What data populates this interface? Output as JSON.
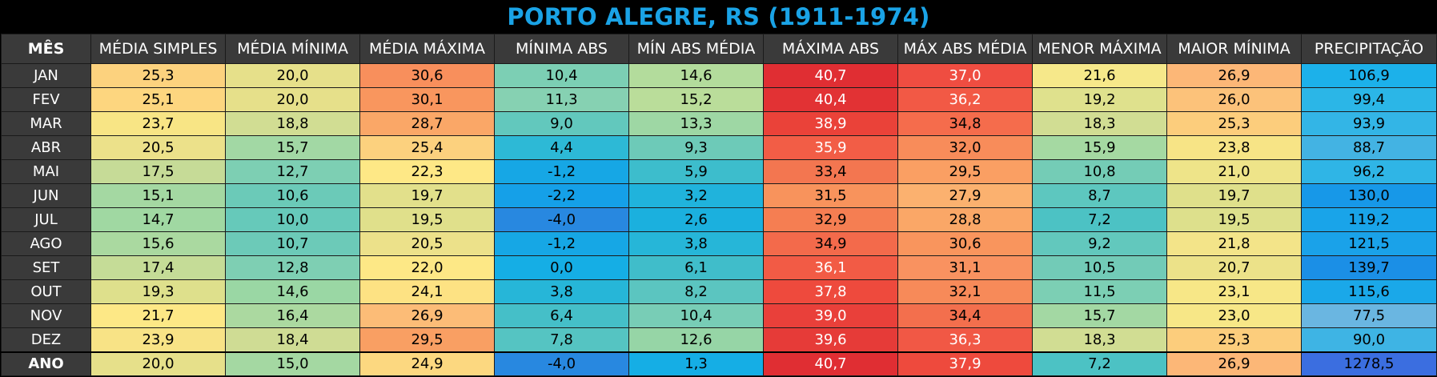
{
  "title": "PORTO ALEGRE, RS (1911-1974)",
  "headers": [
    "MÊS",
    "MÉDIA SIMPLES",
    "MÉDIA MÍNIMA",
    "MÉDIA MÁXIMA",
    "MÍNIMA ABS",
    "MÍN ABS MÉDIA",
    "MÁXIMA ABS",
    "MÁX ABS MÉDIA",
    "MENOR MÁXIMA",
    "MAIOR MÍNIMA",
    "PRECIPITAÇÃO"
  ],
  "rows": [
    {
      "month": "JAN",
      "cells": [
        {
          "v": "25,3",
          "c": "#fcd27e"
        },
        {
          "v": "20,0",
          "c": "#e6e08a"
        },
        {
          "v": "30,6",
          "c": "#f88f5c"
        },
        {
          "v": "10,4",
          "c": "#7ccfb4"
        },
        {
          "v": "14,6",
          "c": "#b3dc9c"
        },
        {
          "v": "40,7",
          "c": "#e02e33",
          "w": true
        },
        {
          "v": "37,0",
          "c": "#ef4d41",
          "w": true
        },
        {
          "v": "21,6",
          "c": "#f6e88a"
        },
        {
          "v": "26,9",
          "c": "#fcb777"
        },
        {
          "v": "106,9",
          "c": "#1cb1ea"
        }
      ]
    },
    {
      "month": "FEV",
      "cells": [
        {
          "v": "25,1",
          "c": "#fdd67f"
        },
        {
          "v": "20,0",
          "c": "#e6e08a"
        },
        {
          "v": "30,1",
          "c": "#f9965e"
        },
        {
          "v": "11,3",
          "c": "#86d1b2"
        },
        {
          "v": "15,2",
          "c": "#badd9a"
        },
        {
          "v": "40,4",
          "c": "#e23234",
          "w": true
        },
        {
          "v": "36,2",
          "c": "#f25945",
          "w": true
        },
        {
          "v": "19,2",
          "c": "#dfe18d"
        },
        {
          "v": "26,0",
          "c": "#fcc27a"
        },
        {
          "v": "99,4",
          "c": "#2bb6e7"
        }
      ]
    },
    {
      "month": "MAR",
      "cells": [
        {
          "v": "23,7",
          "c": "#f8e585"
        },
        {
          "v": "18,8",
          "c": "#d1dd93"
        },
        {
          "v": "28,7",
          "c": "#faa767"
        },
        {
          "v": "9,0",
          "c": "#62c8bd"
        },
        {
          "v": "13,3",
          "c": "#9ed7a4"
        },
        {
          "v": "38,9",
          "c": "#ea4239",
          "w": true
        },
        {
          "v": "34,8",
          "c": "#f56c4c"
        },
        {
          "v": "18,3",
          "c": "#d1dd93"
        },
        {
          "v": "25,3",
          "c": "#fccd7c"
        },
        {
          "v": "93,9",
          "c": "#33b5e6"
        }
      ]
    },
    {
      "month": "ABR",
      "cells": [
        {
          "v": "20,5",
          "c": "#ece18a"
        },
        {
          "v": "15,7",
          "c": "#a2d8a4"
        },
        {
          "v": "25,4",
          "c": "#fcd17e"
        },
        {
          "v": "4,4",
          "c": "#2db9d6"
        },
        {
          "v": "9,3",
          "c": "#6dcab8"
        },
        {
          "v": "35,9",
          "c": "#f25d46",
          "w": true
        },
        {
          "v": "32,0",
          "c": "#f88c5a"
        },
        {
          "v": "15,9",
          "c": "#a5d9a2"
        },
        {
          "v": "23,8",
          "c": "#f7e486"
        },
        {
          "v": "88,7",
          "c": "#43b3e3"
        }
      ]
    },
    {
      "month": "MAI",
      "cells": [
        {
          "v": "17,5",
          "c": "#c6db97"
        },
        {
          "v": "12,7",
          "c": "#7dcfb3"
        },
        {
          "v": "22,3",
          "c": "#fee886"
        },
        {
          "v": "-1,2",
          "c": "#16a7e5"
        },
        {
          "v": "5,9",
          "c": "#3dbdcc"
        },
        {
          "v": "33,4",
          "c": "#f37650"
        },
        {
          "v": "29,5",
          "c": "#fa9f63"
        },
        {
          "v": "10,8",
          "c": "#74ccb6"
        },
        {
          "v": "21,0",
          "c": "#eee489"
        },
        {
          "v": "96,2",
          "c": "#2fb5e6"
        }
      ]
    },
    {
      "month": "JUN",
      "cells": [
        {
          "v": "15,1",
          "c": "#a4d8a2"
        },
        {
          "v": "10,6",
          "c": "#6bcab8"
        },
        {
          "v": "19,7",
          "c": "#e2e08b"
        },
        {
          "v": "-2,2",
          "c": "#15a0e8"
        },
        {
          "v": "3,2",
          "c": "#20b3dc"
        },
        {
          "v": "31,5",
          "c": "#f8935c"
        },
        {
          "v": "27,9",
          "c": "#fbb16f"
        },
        {
          "v": "8,7",
          "c": "#5dc7bf"
        },
        {
          "v": "19,7",
          "c": "#dfe08b"
        },
        {
          "v": "130,0",
          "c": "#1798e8"
        }
      ]
    },
    {
      "month": "JUL",
      "cells": [
        {
          "v": "14,7",
          "c": "#a0d8a2"
        },
        {
          "v": "10,0",
          "c": "#66c9ba"
        },
        {
          "v": "19,5",
          "c": "#e0e08b"
        },
        {
          "v": "-4,0",
          "c": "#2888e0"
        },
        {
          "v": "2,6",
          "c": "#1bb0de"
        },
        {
          "v": "32,9",
          "c": "#f57e52"
        },
        {
          "v": "28,8",
          "c": "#faa767"
        },
        {
          "v": "7,2",
          "c": "#4cc2c4"
        },
        {
          "v": "19,5",
          "c": "#dde08c"
        },
        {
          "v": "119,2",
          "c": "#19a4e9"
        }
      ]
    },
    {
      "month": "AGO",
      "cells": [
        {
          "v": "15,6",
          "c": "#aad9a0"
        },
        {
          "v": "10,7",
          "c": "#6ccab8"
        },
        {
          "v": "20,5",
          "c": "#ece18a"
        },
        {
          "v": "-1,2",
          "c": "#16a7e5"
        },
        {
          "v": "3,8",
          "c": "#26b6d8"
        },
        {
          "v": "34,9",
          "c": "#f36a4b"
        },
        {
          "v": "30,6",
          "c": "#f9955d"
        },
        {
          "v": "9,2",
          "c": "#62c8bd"
        },
        {
          "v": "21,8",
          "c": "#f3e489"
        },
        {
          "v": "121,5",
          "c": "#1aa2e9"
        }
      ]
    },
    {
      "month": "SET",
      "cells": [
        {
          "v": "17,4",
          "c": "#c5dc97"
        },
        {
          "v": "12,8",
          "c": "#7ecfb3"
        },
        {
          "v": "22,0",
          "c": "#fde886"
        },
        {
          "v": "0,0",
          "c": "#15aee5"
        },
        {
          "v": "6,1",
          "c": "#40bdca"
        },
        {
          "v": "36,1",
          "c": "#f25b45",
          "w": true
        },
        {
          "v": "31,1",
          "c": "#f99260"
        },
        {
          "v": "10,5",
          "c": "#72cbb7"
        },
        {
          "v": "20,7",
          "c": "#ece289"
        },
        {
          "v": "139,7",
          "c": "#1b8fe6"
        }
      ]
    },
    {
      "month": "OUT",
      "cells": [
        {
          "v": "19,3",
          "c": "#dee08c"
        },
        {
          "v": "14,6",
          "c": "#9ad7a4"
        },
        {
          "v": "24,1",
          "c": "#fde283"
        },
        {
          "v": "3,8",
          "c": "#26b6d8"
        },
        {
          "v": "8,2",
          "c": "#5bc5c0"
        },
        {
          "v": "37,8",
          "c": "#ee4a3d",
          "w": true
        },
        {
          "v": "32,1",
          "c": "#f78a59"
        },
        {
          "v": "11,5",
          "c": "#7ccfb4"
        },
        {
          "v": "23,1",
          "c": "#f7e787"
        },
        {
          "v": "115,6",
          "c": "#1aa8e9"
        }
      ]
    },
    {
      "month": "NOV",
      "cells": [
        {
          "v": "21,7",
          "c": "#fde886"
        },
        {
          "v": "16,4",
          "c": "#abd9a0"
        },
        {
          "v": "26,9",
          "c": "#fcbc77"
        },
        {
          "v": "6,4",
          "c": "#45bfc8"
        },
        {
          "v": "10,4",
          "c": "#78cdb6"
        },
        {
          "v": "39,0",
          "c": "#e9403a",
          "w": true
        },
        {
          "v": "34,4",
          "c": "#f36f4d"
        },
        {
          "v": "15,7",
          "c": "#a3d8a3"
        },
        {
          "v": "23,0",
          "c": "#f7e787"
        },
        {
          "v": "77,5",
          "c": "#6ab6e1"
        }
      ]
    },
    {
      "month": "DEZ",
      "cells": [
        {
          "v": "23,9",
          "c": "#f8e386"
        },
        {
          "v": "18,4",
          "c": "#cfdc94"
        },
        {
          "v": "29,5",
          "c": "#f99f63"
        },
        {
          "v": "7,8",
          "c": "#55c4c2"
        },
        {
          "v": "12,6",
          "c": "#96d5a6"
        },
        {
          "v": "39,6",
          "c": "#e63b38",
          "w": true
        },
        {
          "v": "36,3",
          "c": "#f15845",
          "w": true
        },
        {
          "v": "18,3",
          "c": "#d1dd93"
        },
        {
          "v": "25,3",
          "c": "#fccd7c"
        },
        {
          "v": "90,0",
          "c": "#3eb4e4"
        }
      ]
    },
    {
      "month": "ANO",
      "total": true,
      "cells": [
        {
          "v": "20,0",
          "c": "#e6e08a"
        },
        {
          "v": "15,0",
          "c": "#a4d8a2"
        },
        {
          "v": "24,9",
          "c": "#fcd880"
        },
        {
          "v": "-4,0",
          "c": "#2888e0"
        },
        {
          "v": "1,3",
          "c": "#15aee5"
        },
        {
          "v": "40,7",
          "c": "#e02e33",
          "w": true
        },
        {
          "v": "37,9",
          "c": "#ee4a3d",
          "w": true
        },
        {
          "v": "7,2",
          "c": "#4cc2c4"
        },
        {
          "v": "26,9",
          "c": "#fcb777"
        },
        {
          "v": "1278,5",
          "c": "#3b6ee0"
        }
      ]
    }
  ]
}
